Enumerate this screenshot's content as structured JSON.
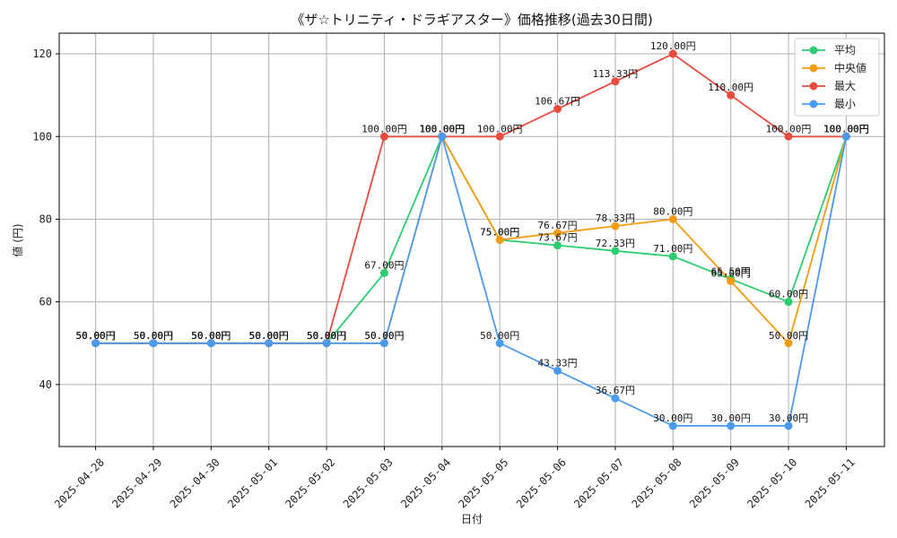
{
  "chart_data": {
    "type": "line",
    "title": "《ザ☆トリニティ・ドラギアスター》価格推移(過去30日間)",
    "xlabel": "日付",
    "ylabel": "値 (円)",
    "ylim": [
      25,
      125
    ],
    "yticks": [
      40,
      60,
      80,
      100,
      120
    ],
    "grid": true,
    "legend_position": "top-right",
    "categories": [
      "2025-04-28",
      "2025-04-29",
      "2025-04-30",
      "2025-05-01",
      "2025-05-02",
      "2025-05-03",
      "2025-05-04",
      "2025-05-05",
      "2025-05-06",
      "2025-05-07",
      "2025-05-08",
      "2025-05-09",
      "2025-05-10",
      "2025-05-11"
    ],
    "series": [
      {
        "name": "平均",
        "color": "#2ecc71",
        "values": [
          50,
          50,
          50,
          50,
          50,
          67,
          100,
          75,
          73.67,
          72.33,
          71,
          65.5,
          60,
          100
        ],
        "labels": [
          "50.00円",
          "50.00円",
          "50.00円",
          "50.00円",
          "50.00円",
          "67.00円",
          "100.00円",
          "75.00円",
          "73.67円",
          "72.33円",
          "71.00円",
          "65.50円",
          "60.00円",
          "100.00円"
        ]
      },
      {
        "name": "中央値",
        "color": "#f39c12",
        "values": [
          50,
          50,
          50,
          50,
          50,
          50,
          100,
          75,
          76.67,
          78.33,
          80,
          65,
          50,
          100
        ],
        "labels": [
          "50.00円",
          "50.00円",
          "50.00円",
          "50.00円",
          "50.00円",
          "50.00円",
          "100.00円",
          "75.00円",
          "76.67円",
          "78.33円",
          "80.00円",
          "65.00円",
          "50.00円",
          "100.00円"
        ]
      },
      {
        "name": "最大",
        "color": "#e74c3c",
        "values": [
          50,
          50,
          50,
          50,
          50,
          100,
          100,
          100,
          106.67,
          113.33,
          120,
          110,
          100,
          100
        ],
        "labels": [
          "50.00円",
          "50.00円",
          "50.00円",
          "50.00円",
          "50.00円",
          "100.00円",
          "100.00円",
          "100.00円",
          "106.67円",
          "113.33円",
          "120.00円",
          "110.00円",
          "100.00円",
          "100.00円"
        ]
      },
      {
        "name": "最小",
        "color": "#4a9bf0",
        "values": [
          50,
          50,
          50,
          50,
          50,
          50,
          100,
          50,
          43.33,
          36.67,
          30,
          30,
          30,
          100
        ],
        "labels": [
          "50.00円",
          "50.00円",
          "50.00円",
          "50.00円",
          "50.00円",
          "50.00円",
          "100.00円",
          "50.00円",
          "43.33円",
          "36.67円",
          "30.00円",
          "30.00円",
          "30.00円",
          "100.00円"
        ]
      }
    ]
  }
}
